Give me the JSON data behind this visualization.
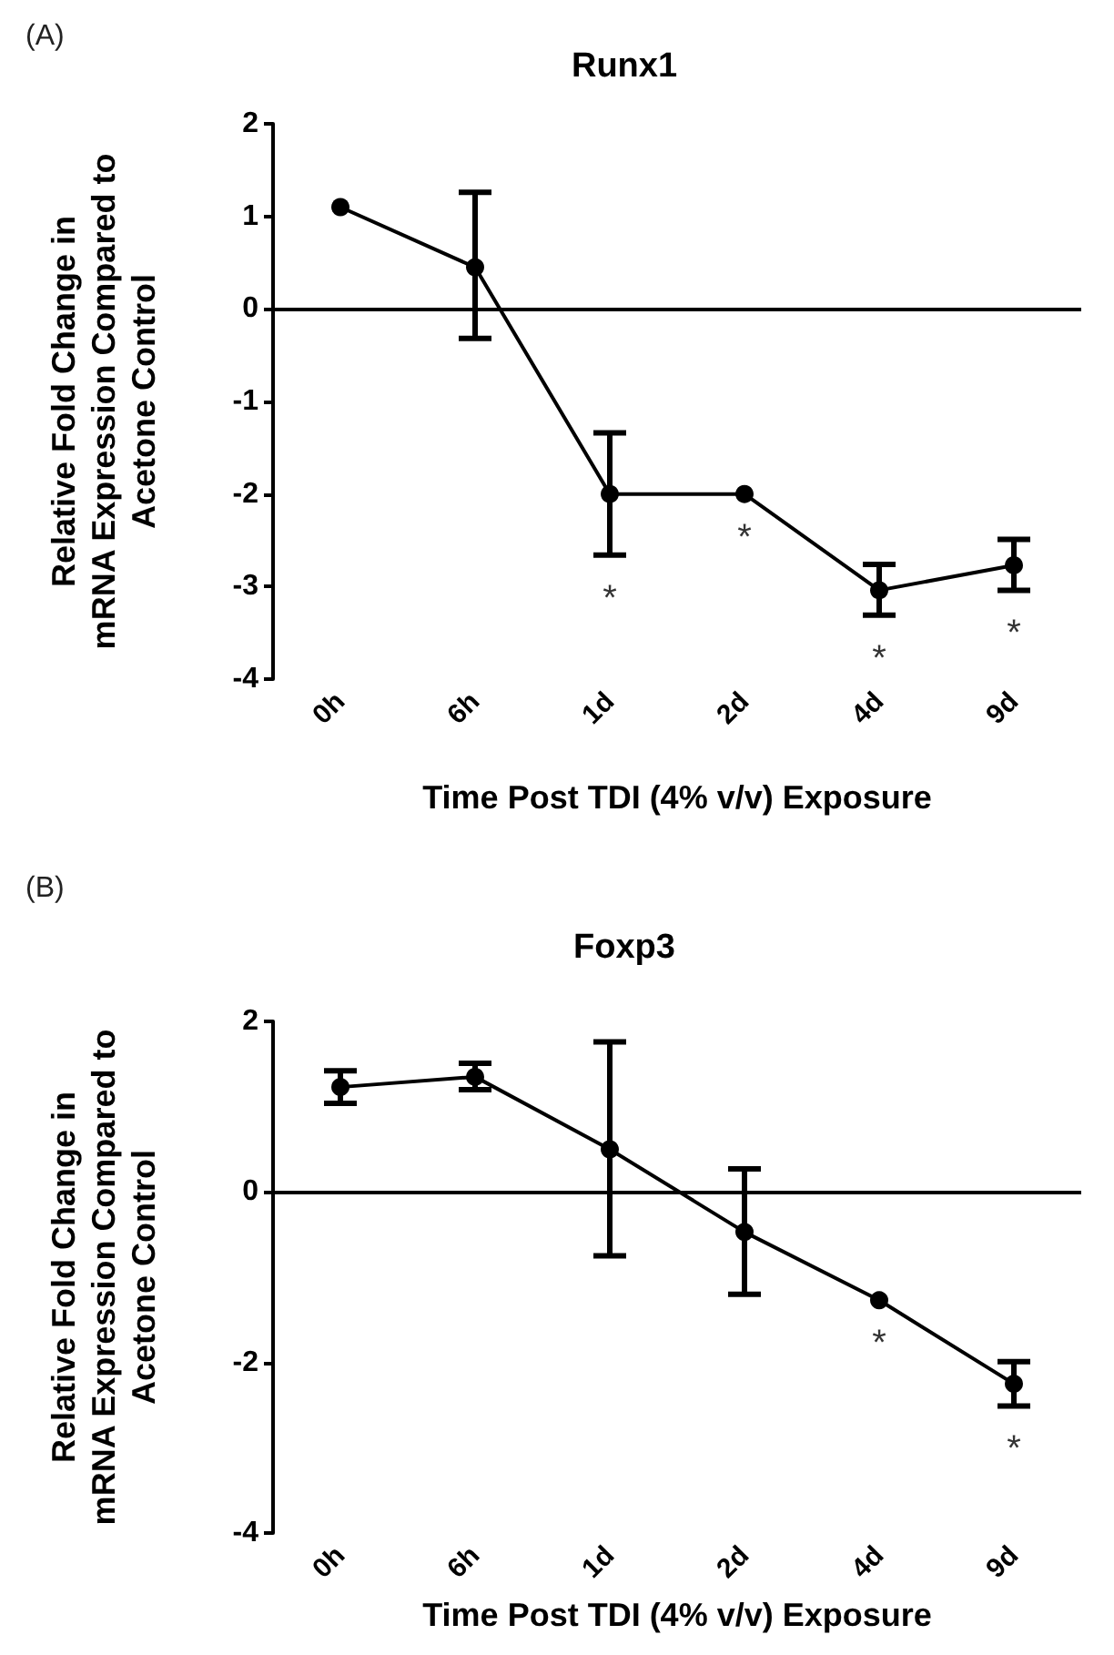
{
  "chart_data": [
    {
      "type": "line",
      "title": "Runx1",
      "xlabel": "Time Post TDI (4% v/v) Exposure",
      "ylabel": "Relative Fold Change in\nmRNA Expression Compared to\nAcetone Control",
      "categories": [
        "0h",
        "6h",
        "1d",
        "2d",
        "4d",
        "9d"
      ],
      "series": [
        {
          "color": "#000000",
          "values": [
            1.1,
            0.45,
            -2.0,
            -2.0,
            -3.04,
            -2.77
          ],
          "errors": [
            null,
            [
              -0.32,
              1.26
            ],
            [
              -2.66,
              -1.34
            ],
            null,
            [
              -3.31,
              -2.76
            ],
            [
              -3.04,
              -2.49
            ]
          ]
        }
      ],
      "ylim": [
        -4,
        2
      ],
      "yticks": [
        -4,
        -3,
        -2,
        -1,
        0,
        1,
        2
      ],
      "grid": false,
      "marker": "circle",
      "line_style": "solid",
      "ref_lines": [
        {
          "axis": "y",
          "value": 0,
          "color": "#000000"
        }
      ],
      "annotations": [
        "(A)",
        {
          "text": "*",
          "x": "1d",
          "y": -2.0
        },
        {
          "text": "*",
          "x": "2d",
          "y": -2.0
        },
        {
          "text": "*",
          "x": "4d",
          "y": -3.04
        },
        {
          "text": "*",
          "x": "9d",
          "y": -2.77
        }
      ]
    },
    {
      "type": "line",
      "title": "Foxp3",
      "xlabel": "Time Post TDI (4% v/v) Exposure",
      "ylabel": "Relative Fold Change in\nmRNA Expression Compared to\nAcetone Control",
      "categories": [
        "0h",
        "6h",
        "1d",
        "2d",
        "4d",
        "9d"
      ],
      "series": [
        {
          "color": "#000000",
          "values": [
            1.23,
            1.35,
            0.5,
            -0.47,
            -1.27,
            -2.25
          ],
          "errors": [
            [
              1.04,
              1.42
            ],
            [
              1.2,
              1.51
            ],
            [
              -0.75,
              1.76
            ],
            [
              -1.2,
              0.27
            ],
            null,
            [
              -2.51,
              -1.99
            ]
          ]
        }
      ],
      "ylim": [
        -4,
        2
      ],
      "yticks": [
        -4,
        -2,
        0,
        2
      ],
      "grid": false,
      "marker": "circle",
      "line_style": "solid",
      "ref_lines": [
        {
          "axis": "y",
          "value": 0,
          "color": "#000000"
        }
      ],
      "annotations": [
        "(B)",
        {
          "text": "*",
          "x": "4d",
          "y": -1.27
        },
        {
          "text": "*",
          "x": "9d",
          "y": -2.25
        }
      ]
    }
  ]
}
